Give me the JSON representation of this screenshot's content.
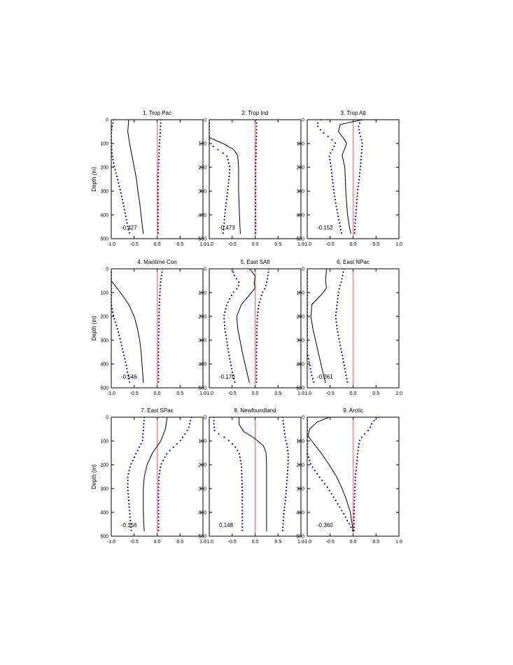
{
  "figure": {
    "ylabel": "Depth (m)",
    "x_tick_labels": [
      "-1.0",
      "-0.5",
      "0.0",
      "0.5",
      "1.0"
    ],
    "y_tick_labels": [
      "0",
      "100",
      "200",
      "300",
      "400",
      "500"
    ],
    "colors": {
      "zero_line": "#ff7070",
      "solid_line": "#000000",
      "dotted_series": "#0000cc"
    }
  },
  "chart_data": [
    {
      "type": "line",
      "title": "1. Trop Pac",
      "annotation": "-0.427",
      "xlim": [
        -1.0,
        1.0
      ],
      "ylim": [
        500,
        0
      ],
      "zero_reference": 0.0,
      "y_depth": [
        0,
        50,
        100,
        150,
        200,
        250,
        300,
        350,
        400,
        450,
        480
      ],
      "series": [
        {
          "style": "solid",
          "x": [
            -0.62,
            -0.64,
            -0.6,
            -0.55,
            -0.5,
            -0.45,
            -0.42,
            -0.38,
            -0.35,
            -0.32,
            -0.3
          ]
        },
        {
          "style": "dotted-left",
          "x": [
            -0.95,
            -1.0,
            -1.0,
            -0.98,
            -0.93,
            -0.86,
            -0.8,
            -0.74,
            -0.69,
            -0.64,
            -0.6
          ]
        },
        {
          "style": "dotted-right",
          "x": [
            0.08,
            0.07,
            0.05,
            0.04,
            0.03,
            0.02,
            0.02,
            0.02,
            0.02,
            0.02,
            0.02
          ]
        }
      ]
    },
    {
      "type": "line",
      "title": "2. Trop Ind",
      "annotation": "-0.473",
      "xlim": [
        -1.0,
        1.0
      ],
      "ylim": [
        500,
        0
      ],
      "zero_reference": 0.0,
      "y_depth": [
        0,
        50,
        75,
        100,
        125,
        150,
        200,
        250,
        300,
        350,
        400,
        450,
        480
      ],
      "series": [
        {
          "style": "solid",
          "x": [
            -1.0,
            -1.0,
            -1.0,
            -0.7,
            -0.47,
            -0.38,
            -0.36,
            -0.36,
            -0.36,
            -0.35,
            -0.34,
            -0.33,
            -0.32
          ]
        },
        {
          "style": "dotted-left",
          "x": [
            -1.0,
            -1.0,
            -1.0,
            -1.0,
            -0.82,
            -0.62,
            -0.55,
            -0.57,
            -0.6,
            -0.63,
            -0.66,
            -0.68,
            -0.7
          ]
        },
        {
          "style": "dotted-right",
          "x": [
            0.03,
            0.03,
            0.03,
            0.02,
            0.02,
            0.02,
            0.01,
            0.01,
            0.01,
            0.01,
            0.01,
            0.01,
            0.01
          ]
        }
      ]
    },
    {
      "type": "line",
      "title": "3. Trop Atl",
      "annotation": "-0.152",
      "xlim": [
        -1.0,
        1.0
      ],
      "ylim": [
        500,
        0
      ],
      "zero_reference": 0.0,
      "y_depth": [
        0,
        20,
        50,
        80,
        100,
        150,
        200,
        250,
        300,
        350,
        400,
        450,
        480
      ],
      "series": [
        {
          "style": "solid",
          "x": [
            0.2,
            -0.28,
            -0.32,
            -0.2,
            -0.14,
            -0.24,
            -0.18,
            -0.17,
            -0.16,
            -0.14,
            -0.12,
            -0.08,
            -0.05
          ]
        },
        {
          "style": "dotted-left",
          "x": [
            -0.7,
            -0.8,
            -0.68,
            -0.48,
            -0.38,
            -0.52,
            -0.48,
            -0.45,
            -0.42,
            -0.38,
            -0.33,
            -0.28,
            -0.25
          ]
        },
        {
          "style": "dotted-right",
          "x": [
            0.2,
            0.12,
            0.13,
            0.18,
            0.2,
            0.18,
            0.16,
            0.13,
            0.1,
            0.08,
            0.06,
            0.04,
            0.03
          ]
        }
      ]
    },
    {
      "type": "line",
      "title": "4. Maritime Con",
      "annotation": "-0.546",
      "xlim": [
        -1.0,
        1.0
      ],
      "ylim": [
        500,
        0
      ],
      "zero_reference": 0.0,
      "y_depth": [
        0,
        50,
        100,
        150,
        200,
        250,
        300,
        350,
        400,
        450,
        480
      ],
      "series": [
        {
          "style": "solid",
          "x": [
            -1.0,
            -1.0,
            -0.8,
            -0.62,
            -0.5,
            -0.43,
            -0.38,
            -0.35,
            -0.33,
            -0.31,
            -0.3
          ]
        },
        {
          "style": "dotted-left",
          "x": [
            -1.0,
            -1.0,
            -1.0,
            -1.0,
            -0.95,
            -0.87,
            -0.8,
            -0.74,
            -0.68,
            -0.63,
            -0.6
          ]
        },
        {
          "style": "dotted-right",
          "x": [
            0.12,
            0.08,
            0.06,
            0.05,
            0.04,
            0.04,
            0.03,
            0.03,
            0.03,
            0.03,
            0.03
          ]
        }
      ]
    },
    {
      "type": "line",
      "title": "5. East SAtl",
      "annotation": "-0.170",
      "xlim": [
        -1.0,
        1.0
      ],
      "ylim": [
        500,
        0
      ],
      "zero_reference": 0.0,
      "y_depth": [
        0,
        30,
        60,
        80,
        100,
        150,
        200,
        250,
        300,
        350,
        400,
        450,
        480
      ],
      "series": [
        {
          "style": "solid",
          "x": [
            -0.12,
            0.0,
            -0.02,
            0.0,
            -0.08,
            -0.3,
            -0.4,
            -0.38,
            -0.33,
            -0.28,
            -0.22,
            -0.16,
            -0.12
          ]
        },
        {
          "style": "dotted-left",
          "x": [
            -0.5,
            -0.45,
            -0.34,
            -0.38,
            -0.48,
            -0.62,
            -0.68,
            -0.66,
            -0.62,
            -0.58,
            -0.53,
            -0.48,
            -0.44
          ]
        },
        {
          "style": "dotted-right",
          "x": [
            0.3,
            0.28,
            0.25,
            0.22,
            0.16,
            0.08,
            0.05,
            0.04,
            0.04,
            0.03,
            0.03,
            0.03,
            0.03
          ]
        }
      ]
    },
    {
      "type": "line",
      "title": "6. East NPac",
      "annotation": "-0.261",
      "xlim": [
        -1.0,
        1.0
      ],
      "ylim": [
        500,
        0
      ],
      "zero_reference": 0.0,
      "y_depth": [
        0,
        50,
        80,
        100,
        150,
        200,
        250,
        300,
        350,
        400,
        450,
        480
      ],
      "series": [
        {
          "style": "solid",
          "x": [
            -0.58,
            -0.6,
            -0.58,
            -0.65,
            -0.9,
            -0.92,
            -0.88,
            -0.82,
            -0.76,
            -0.7,
            -0.64,
            -0.6
          ]
        },
        {
          "style": "dotted-left",
          "x": [
            -1.0,
            -1.0,
            -1.0,
            -1.0,
            -1.0,
            -1.0,
            -1.0,
            -1.0,
            -1.0,
            -0.95,
            -0.9,
            -0.85
          ]
        },
        {
          "style": "dotted-right",
          "x": [
            -0.2,
            -0.25,
            -0.3,
            -0.32,
            -0.35,
            -0.38,
            -0.35,
            -0.3,
            -0.25,
            -0.2,
            -0.15,
            -0.12
          ]
        }
      ]
    },
    {
      "type": "line",
      "title": "7. East SPac",
      "annotation": "-0.156",
      "xlim": [
        -1.0,
        1.0
      ],
      "ylim": [
        500,
        0
      ],
      "zero_reference": 0.0,
      "y_depth": [
        0,
        50,
        100,
        150,
        200,
        250,
        300,
        350,
        400,
        450,
        480
      ],
      "series": [
        {
          "style": "solid",
          "x": [
            0.22,
            0.18,
            0.08,
            -0.1,
            -0.22,
            -0.28,
            -0.3,
            -0.3,
            -0.3,
            -0.29,
            -0.28
          ]
        },
        {
          "style": "dotted-left",
          "x": [
            -0.28,
            -0.3,
            -0.32,
            -0.45,
            -0.58,
            -0.64,
            -0.64,
            -0.62,
            -0.6,
            -0.58,
            -0.56
          ]
        },
        {
          "style": "dotted-right",
          "x": [
            0.75,
            0.68,
            0.5,
            0.22,
            0.08,
            0.04,
            0.03,
            0.03,
            0.03,
            0.03,
            0.03
          ]
        }
      ]
    },
    {
      "type": "line",
      "title": "8. Newfoundland",
      "annotation": "0.148",
      "xlim": [
        -1.0,
        1.0
      ],
      "ylim": [
        500,
        0
      ],
      "zero_reference": 0.0,
      "y_depth": [
        0,
        30,
        60,
        90,
        120,
        150,
        200,
        250,
        300,
        350,
        400,
        450,
        480
      ],
      "series": [
        {
          "style": "solid",
          "x": [
            -0.35,
            -0.35,
            -0.25,
            0.0,
            0.18,
            0.24,
            0.25,
            0.25,
            0.25,
            0.25,
            0.25,
            0.25,
            0.25
          ]
        },
        {
          "style": "dotted-left",
          "x": [
            -0.9,
            -0.9,
            -0.88,
            -0.62,
            -0.45,
            -0.35,
            -0.3,
            -0.29,
            -0.28,
            -0.28,
            -0.28,
            -0.28,
            -0.28
          ]
        },
        {
          "style": "dotted-right",
          "x": [
            0.6,
            0.62,
            0.64,
            0.66,
            0.7,
            0.72,
            0.72,
            0.7,
            0.68,
            0.66,
            0.63,
            0.61,
            0.6
          ]
        }
      ]
    },
    {
      "type": "line",
      "title": "9. Arctic",
      "annotation": "-0.360",
      "xlim": [
        -1.0,
        1.0
      ],
      "ylim": [
        500,
        0
      ],
      "zero_reference": 0.0,
      "y_depth": [
        0,
        20,
        50,
        80,
        100,
        150,
        200,
        250,
        300,
        350,
        400,
        450,
        480
      ],
      "series": [
        {
          "style": "solid",
          "x": [
            -0.52,
            -0.78,
            -0.95,
            -0.98,
            -0.9,
            -0.7,
            -0.52,
            -0.36,
            -0.24,
            -0.14,
            -0.06,
            -0.02,
            0.0
          ]
        },
        {
          "style": "dotted-left",
          "x": [
            -1.0,
            -1.0,
            -1.0,
            -1.0,
            -1.0,
            -1.0,
            -0.92,
            -0.74,
            -0.54,
            -0.38,
            -0.22,
            -0.08,
            0.0
          ]
        },
        {
          "style": "dotted-right",
          "x": [
            0.55,
            0.42,
            0.36,
            0.2,
            0.14,
            0.1,
            0.08,
            0.05,
            0.04,
            0.03,
            0.02,
            0.02,
            0.02
          ]
        }
      ]
    }
  ]
}
